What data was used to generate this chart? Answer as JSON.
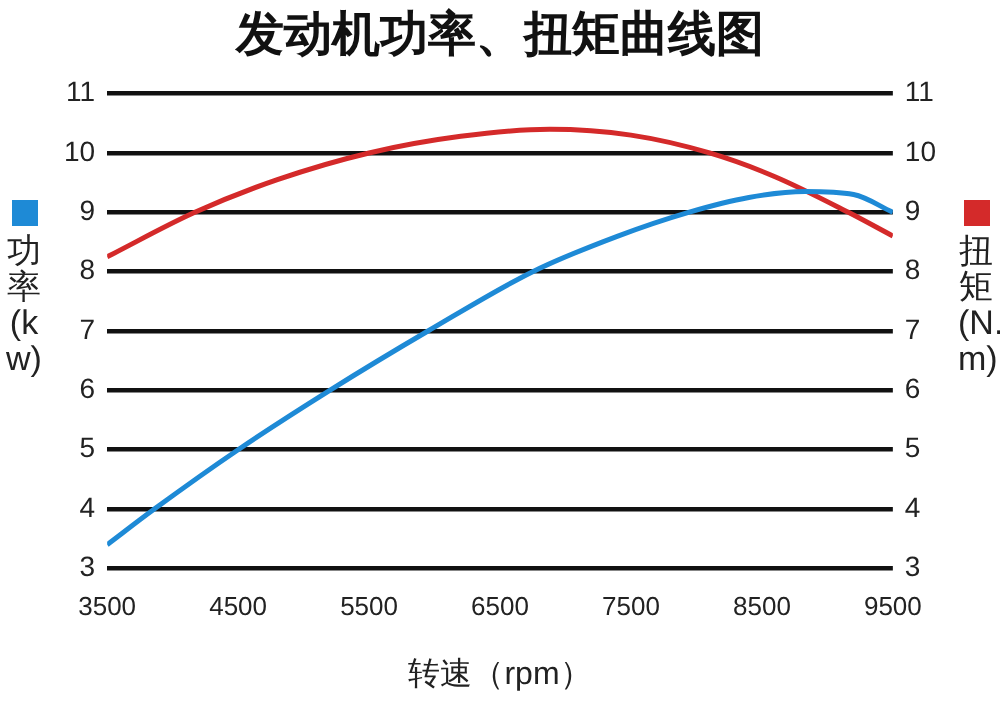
{
  "chart_data": {
    "type": "line",
    "title": "发动机功率、扭矩曲线图",
    "xlabel": "转速（rpm）",
    "ylabel": "功率(kw)",
    "y2label": "扭矩(N.m)",
    "xlim": [
      3500,
      9500
    ],
    "xticks": [
      3500,
      4500,
      5500,
      6500,
      7500,
      8500,
      9500
    ],
    "ylim": [
      3,
      11
    ],
    "yticks": [
      3,
      4,
      5,
      6,
      7,
      8,
      9,
      10,
      11
    ],
    "y2lim": [
      3,
      11
    ],
    "y2ticks": [
      3,
      4,
      5,
      6,
      7,
      8,
      9,
      10,
      11
    ],
    "grid": "y",
    "legend": false,
    "marker": "none",
    "line_style": "solid",
    "series": [
      {
        "color": "#1e8ad6",
        "x": [
          3500,
          3860,
          4500,
          5200,
          5950,
          6750,
          7400,
          7940,
          8400,
          8830,
          9200,
          9500
        ],
        "values": [
          3.4,
          4,
          5,
          6,
          7,
          8,
          8.6,
          9,
          9.25,
          9.35,
          9.3,
          9
        ]
      },
      {
        "color": "#d42a2a",
        "axis": "y2",
        "x": [
          3500,
          4170,
          4800,
          5500,
          6200,
          6880,
          7500,
          8100,
          8600,
          9160,
          9500
        ],
        "values": [
          8.25,
          9,
          9.55,
          10,
          10.28,
          10.4,
          10.3,
          10,
          9.6,
          9,
          8.6
        ]
      }
    ]
  }
}
